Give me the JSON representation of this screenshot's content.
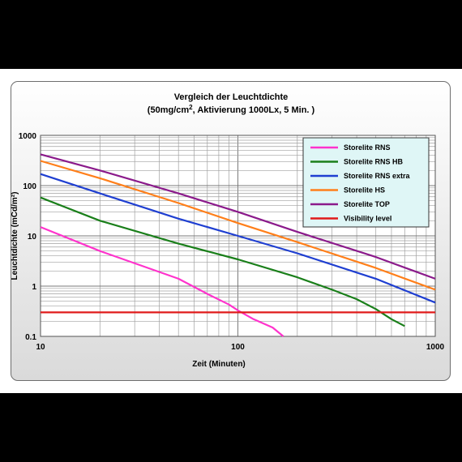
{
  "chart_data": {
    "type": "line",
    "title": "Vergleich der Leuchtdichte",
    "subtitle_parts": {
      "prefix": "(50mg/cm",
      "sup": "2",
      "suffix": ", Aktivierung 1000Lx, 5 Min. )"
    },
    "xlabel": "Zeit (Minuten)",
    "ylabel": "Leuchtdichte (mCd/m²)",
    "x_scale": "log",
    "y_scale": "log",
    "xlim": [
      10,
      1000
    ],
    "ylim": [
      0.1,
      1000
    ],
    "x_ticks": [
      "10",
      "100",
      "1000"
    ],
    "y_ticks": [
      "0.1",
      "1",
      "10",
      "100",
      "1000"
    ],
    "grid": true,
    "legend_position": "top-right",
    "series": [
      {
        "name": "Storelite RNS",
        "color": "#ff33cc",
        "x": [
          10,
          20,
          50,
          70,
          90,
          100,
          120,
          150,
          170
        ],
        "y": [
          15,
          5,
          1.4,
          0.7,
          0.43,
          0.33,
          0.22,
          0.15,
          0.1
        ]
      },
      {
        "name": "Storelite RNS HB",
        "color": "#1a7f1a",
        "x": [
          10,
          20,
          50,
          100,
          200,
          300,
          400,
          500,
          600,
          700
        ],
        "y": [
          58,
          20,
          7,
          3.4,
          1.5,
          0.85,
          0.55,
          0.35,
          0.22,
          0.16
        ]
      },
      {
        "name": "Storelite RNS extra",
        "color": "#1f3fd1",
        "x": [
          10,
          20,
          50,
          100,
          200,
          500,
          1000
        ],
        "y": [
          170,
          70,
          22,
          10,
          4.5,
          1.4,
          0.47
        ]
      },
      {
        "name": "Storelite HS",
        "color": "#ff7f1a",
        "x": [
          10,
          20,
          50,
          100,
          200,
          500,
          1000
        ],
        "y": [
          310,
          140,
          45,
          18,
          7.5,
          2.3,
          0.85
        ]
      },
      {
        "name": "Storelite TOP",
        "color": "#8b1a8b",
        "x": [
          10,
          20,
          50,
          100,
          200,
          500,
          1000
        ],
        "y": [
          420,
          200,
          70,
          30,
          12,
          3.8,
          1.4
        ]
      },
      {
        "name": "Visibility level",
        "color": "#e01a1a",
        "x": [
          10,
          1000
        ],
        "y": [
          0.3,
          0.3
        ]
      }
    ]
  }
}
